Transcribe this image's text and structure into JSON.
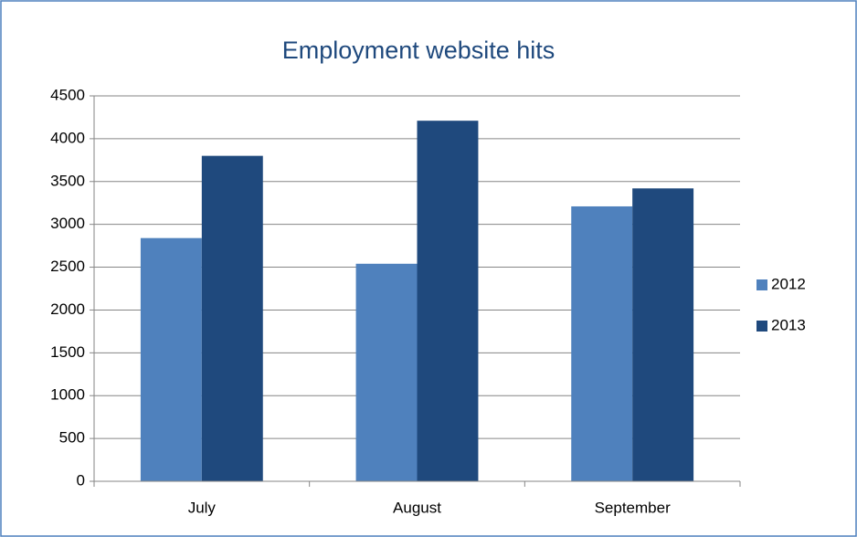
{
  "chart_data": {
    "type": "bar",
    "title": "Employment website hits",
    "categories": [
      "July",
      "August",
      "September"
    ],
    "series": [
      {
        "name": "2012",
        "color": "#4f81bd",
        "values": [
          2840,
          2540,
          3210
        ]
      },
      {
        "name": "2013",
        "color": "#1f497d",
        "values": [
          3800,
          4210,
          3420
        ]
      }
    ],
    "ylim": [
      0,
      4500
    ],
    "yticks": [
      0,
      500,
      1000,
      1500,
      2000,
      2500,
      3000,
      3500,
      4000,
      4500
    ],
    "grid": true,
    "legend": "right"
  }
}
